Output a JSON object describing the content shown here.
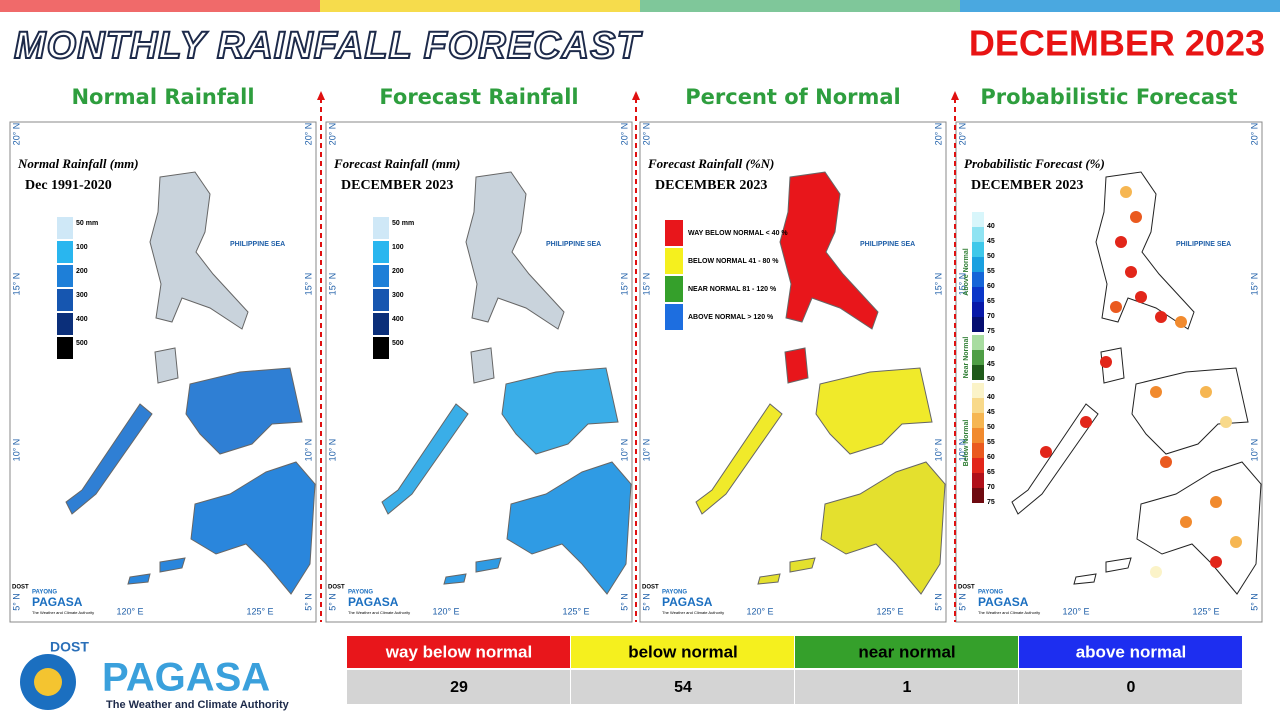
{
  "header": {
    "title": "MONTHLY RAINFALL FORECAST",
    "period": "DECEMBER 2023"
  },
  "coords": {
    "lat": [
      "20° N",
      "15° N",
      "10° N",
      "5° N"
    ],
    "lon": [
      "120° E",
      "125° E"
    ]
  },
  "sea_label": "PHILIPPINE SEA",
  "mini_logo": {
    "dost": "DOST",
    "payong": "PAYONG",
    "pagasa": "PAGASA",
    "tagline": "The Weather and Climate Authority"
  },
  "panels": [
    {
      "heading": "Normal Rainfall",
      "map_title": "Normal Rainfall (mm)",
      "map_subtitle": "Dec 1991-2020",
      "legend": [
        {
          "label": "50 mm",
          "color": "#cfe8f7"
        },
        {
          "label": "100",
          "color": "#29b6ef"
        },
        {
          "label": "200",
          "color": "#1e7fd8"
        },
        {
          "label": "300",
          "color": "#1656b0"
        },
        {
          "label": "400",
          "color": "#0b2f7a"
        },
        {
          "label": "500",
          "color": "#000000"
        }
      ]
    },
    {
      "heading": "Forecast Rainfall",
      "map_title": "Forecast Rainfall (mm)",
      "map_subtitle": "DECEMBER 2023",
      "legend": [
        {
          "label": "50 mm",
          "color": "#cfe8f7"
        },
        {
          "label": "100",
          "color": "#29b6ef"
        },
        {
          "label": "200",
          "color": "#1e7fd8"
        },
        {
          "label": "300",
          "color": "#1656b0"
        },
        {
          "label": "400",
          "color": "#0b2f7a"
        },
        {
          "label": "500",
          "color": "#000000"
        }
      ]
    },
    {
      "heading": "Percent of Normal",
      "map_title": "Forecast Rainfall (%N)",
      "map_subtitle": "DECEMBER 2023",
      "legend": [
        {
          "label": "WAY BELOW NORMAL < 40 %",
          "color": "#e8161b"
        },
        {
          "label": "BELOW NORMAL 41 - 80 %",
          "color": "#f5f01e"
        },
        {
          "label": "NEAR NORMAL 81 - 120 %",
          "color": "#35a02b"
        },
        {
          "label": "ABOVE NORMAL > 120 %",
          "color": "#1d6ee0"
        }
      ]
    },
    {
      "heading": "Probabilistic Forecast",
      "map_title": "Probabilistic Forecast (%)",
      "map_subtitle": "DECEMBER 2023",
      "groups": [
        {
          "name": "Above Normal",
          "entries": [
            {
              "label": 40,
              "color": "#d8f6fb"
            },
            {
              "label": 45,
              "color": "#8fe3f2"
            },
            {
              "label": 50,
              "color": "#3fc8ea"
            },
            {
              "label": 55,
              "color": "#1aa0e0"
            },
            {
              "label": 60,
              "color": "#1565d8"
            },
            {
              "label": 65,
              "color": "#0a36c8"
            },
            {
              "label": 70,
              "color": "#0718a8"
            },
            {
              "label": 75,
              "color": "#050e70"
            }
          ]
        },
        {
          "name": "Near Normal",
          "entries": [
            {
              "label": 40,
              "color": "#a8dca0"
            },
            {
              "label": 45,
              "color": "#4f9e45"
            },
            {
              "label": 50,
              "color": "#1f5a1a"
            }
          ]
        },
        {
          "name": "Below Normal",
          "entries": [
            {
              "label": 40,
              "color": "#fbf3c8"
            },
            {
              "label": 45,
              "color": "#f8d98a"
            },
            {
              "label": 50,
              "color": "#f6b652"
            },
            {
              "label": 55,
              "color": "#f18a2e"
            },
            {
              "label": 60,
              "color": "#ea5a1f"
            },
            {
              "label": 65,
              "color": "#e2261a"
            },
            {
              "label": 70,
              "color": "#b0101a"
            },
            {
              "label": 75,
              "color": "#6e0a10"
            }
          ]
        }
      ]
    }
  ],
  "logo": {
    "dost": "DOST",
    "name": "PAGASA",
    "tagline": "The Weather and Climate Authority"
  },
  "summary": {
    "headers": [
      "way below normal",
      "below normal",
      "near normal",
      "above normal"
    ],
    "counts": [
      29,
      54,
      1,
      0
    ]
  }
}
